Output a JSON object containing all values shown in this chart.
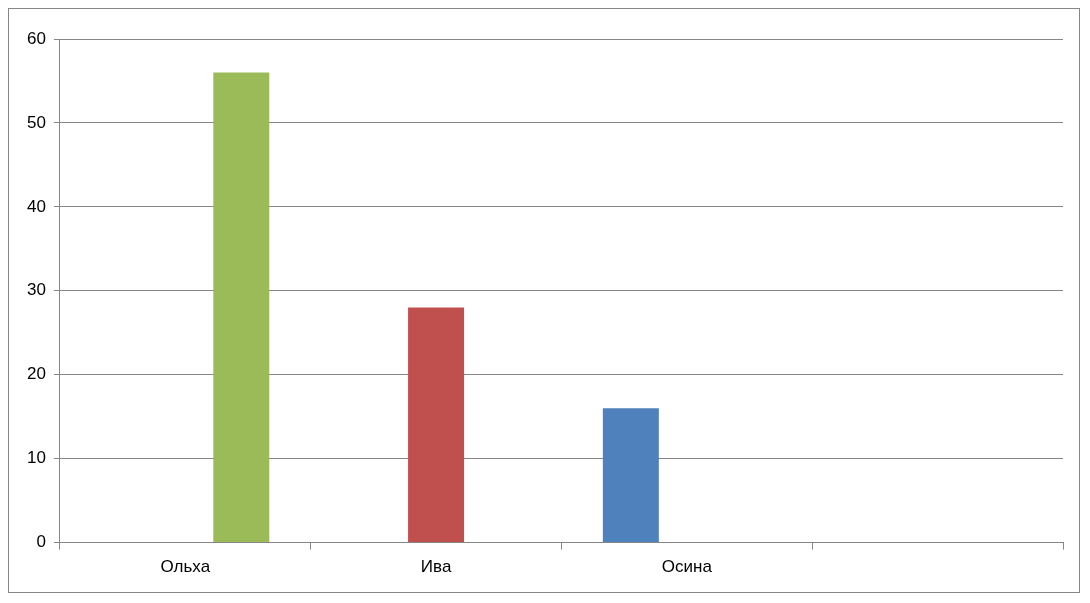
{
  "chart_data": {
    "type": "bar",
    "categories": [
      "Ольха",
      "Ива",
      "Осина",
      null
    ],
    "series": [
      {
        "color": "#4f81bd",
        "values": [
          null,
          null,
          16,
          null
        ]
      },
      {
        "color": "#c0504d",
        "values": [
          null,
          28,
          null,
          null
        ]
      },
      {
        "color": "#9bbb59",
        "values": [
          56,
          null,
          null,
          null
        ]
      }
    ],
    "ylim": [
      0,
      60
    ],
    "yticks": [
      0,
      10,
      20,
      30,
      40,
      50,
      60
    ],
    "grid": "y",
    "legend": false
  }
}
